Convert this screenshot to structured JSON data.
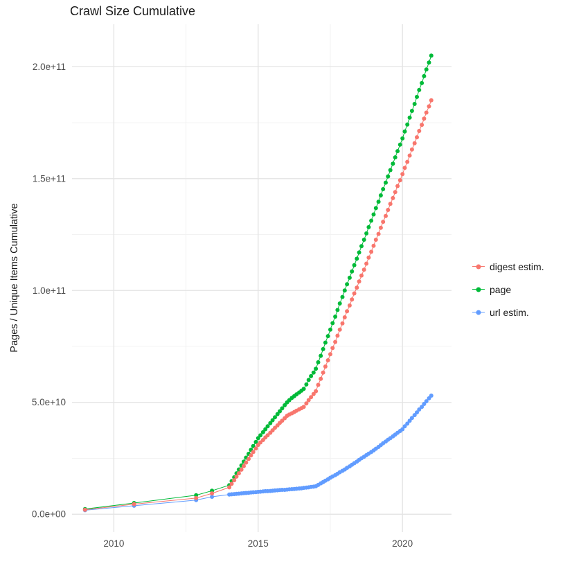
{
  "chart_data": {
    "type": "scatter",
    "title": "Crawl Size Cumulative",
    "xlabel": "",
    "ylabel": "Pages / Unique Items Cumulative",
    "value_unit": "billions (1e9)",
    "grid": true,
    "legend_position": "right",
    "xlim": [
      2008.55,
      2021.7
    ],
    "ylim": [
      -8,
      219
    ],
    "x_ticks": {
      "values": [
        2010,
        2015,
        2020
      ],
      "labels": [
        "2010",
        "2015",
        "2020"
      ]
    },
    "y_ticks": {
      "values": [
        0,
        50,
        100,
        150,
        200
      ],
      "labels": [
        "0.0e+00",
        "5.0e+10",
        "1.0e+11",
        "1.5e+11",
        "2.0e+11"
      ]
    },
    "x_minor": [
      2012.5,
      2017.5
    ],
    "y_minor": [
      25,
      75,
      125,
      175
    ],
    "x": [
      2009,
      2010.7,
      2012.85,
      2013.4,
      2014,
      2014.08,
      2014.17,
      2014.25,
      2014.33,
      2014.42,
      2014.5,
      2014.58,
      2014.67,
      2014.75,
      2014.83,
      2014.92,
      2015,
      2015.08,
      2015.17,
      2015.25,
      2015.33,
      2015.42,
      2015.5,
      2015.58,
      2015.67,
      2015.75,
      2015.83,
      2015.92,
      2016,
      2016.08,
      2016.17,
      2016.25,
      2016.33,
      2016.42,
      2016.5,
      2016.58,
      2016.67,
      2016.75,
      2016.83,
      2016.92,
      2017,
      2017.08,
      2017.17,
      2017.25,
      2017.33,
      2017.42,
      2017.5,
      2017.58,
      2017.67,
      2017.75,
      2017.83,
      2017.92,
      2018,
      2018.08,
      2018.17,
      2018.25,
      2018.33,
      2018.42,
      2018.5,
      2018.58,
      2018.67,
      2018.75,
      2018.83,
      2018.92,
      2019,
      2019.08,
      2019.17,
      2019.25,
      2019.33,
      2019.42,
      2019.5,
      2019.58,
      2019.67,
      2019.75,
      2019.83,
      2019.92,
      2020,
      2020.08,
      2020.17,
      2020.25,
      2020.33,
      2020.42,
      2020.5,
      2020.58,
      2020.67,
      2020.75,
      2020.83,
      2020.92,
      2021
    ],
    "series": [
      {
        "name": "digest estim.",
        "color": "#F8766D",
        "z": 3,
        "values": [
          2.0,
          4.5,
          7.2,
          9.3,
          12.0,
          13.6,
          15.2,
          16.8,
          18.3,
          19.9,
          21.5,
          23.1,
          24.7,
          26.3,
          27.8,
          29.4,
          31.0,
          32.1,
          33.2,
          34.3,
          35.3,
          36.4,
          37.5,
          38.6,
          39.7,
          40.8,
          41.8,
          42.9,
          44.0,
          44.6,
          45.1,
          45.7,
          46.3,
          46.9,
          47.4,
          48.0,
          49.5,
          51.0,
          52.3,
          53.7,
          55.0,
          57.8,
          60.5,
          63.3,
          66.0,
          68.8,
          71.5,
          74.3,
          77.0,
          79.8,
          82.5,
          85.3,
          88.0,
          90.7,
          93.3,
          96.0,
          98.7,
          101.3,
          104.0,
          106.7,
          109.3,
          112.0,
          114.7,
          117.3,
          120.0,
          122.7,
          125.3,
          128.0,
          130.7,
          133.3,
          136.0,
          138.7,
          141.3,
          144.0,
          146.7,
          149.3,
          152.0,
          154.8,
          157.5,
          160.3,
          163.0,
          165.8,
          168.5,
          171.3,
          174.0,
          176.8,
          179.5,
          182.3,
          185.0
        ]
      },
      {
        "name": "page",
        "color": "#00BA38",
        "z": 1,
        "values": [
          2.3,
          5.0,
          8.5,
          10.5,
          13.0,
          14.8,
          16.5,
          18.3,
          20.0,
          21.8,
          23.5,
          25.3,
          27.0,
          28.8,
          30.5,
          32.3,
          34.0,
          35.3,
          36.7,
          38.0,
          39.3,
          40.7,
          42.0,
          43.3,
          44.7,
          46.0,
          47.3,
          48.7,
          50.0,
          51.0,
          52.0,
          52.8,
          53.6,
          54.4,
          55.2,
          56.0,
          58.0,
          60.0,
          61.7,
          63.3,
          65.0,
          67.9,
          70.8,
          73.8,
          76.7,
          79.6,
          82.5,
          85.4,
          88.3,
          91.3,
          94.2,
          97.1,
          100.0,
          102.8,
          105.7,
          108.5,
          111.3,
          114.2,
          117.0,
          119.8,
          122.7,
          125.5,
          128.3,
          131.2,
          134.0,
          136.8,
          139.7,
          142.5,
          145.3,
          148.2,
          151.0,
          153.8,
          156.7,
          159.5,
          162.3,
          165.2,
          168.0,
          171.1,
          174.2,
          177.3,
          180.3,
          183.4,
          186.5,
          189.6,
          192.7,
          195.8,
          198.8,
          201.9,
          205.0
        ]
      },
      {
        "name": "url estim.",
        "color": "#619CFF",
        "z": 2,
        "values": [
          1.8,
          3.8,
          6.3,
          7.8,
          8.8,
          8.9,
          9.0,
          9.1,
          9.2,
          9.3,
          9.4,
          9.5,
          9.6,
          9.7,
          9.8,
          9.9,
          10.0,
          10.1,
          10.2,
          10.3,
          10.3,
          10.4,
          10.5,
          10.6,
          10.7,
          10.8,
          10.9,
          10.9,
          11.0,
          11.1,
          11.2,
          11.3,
          11.4,
          11.5,
          11.6,
          11.8,
          11.9,
          12.0,
          12.2,
          12.3,
          12.5,
          13.1,
          13.8,
          14.4,
          15.0,
          15.6,
          16.3,
          16.9,
          17.5,
          18.1,
          18.8,
          19.4,
          20.0,
          20.7,
          21.4,
          22.1,
          22.8,
          23.5,
          24.3,
          25.0,
          25.7,
          26.4,
          27.1,
          27.8,
          28.5,
          29.3,
          30.1,
          30.9,
          31.7,
          32.5,
          33.3,
          34.0,
          34.8,
          35.6,
          36.4,
          37.2,
          38.0,
          39.3,
          40.5,
          41.8,
          43.0,
          44.3,
          45.5,
          46.8,
          48.0,
          49.3,
          50.5,
          51.8,
          53.0
        ]
      }
    ],
    "colors": {
      "grid_major": "#e3e3e3",
      "grid_minor": "#f1f1f1",
      "text": "#1a1a1a",
      "tick_text": "#4d4d4d"
    }
  }
}
